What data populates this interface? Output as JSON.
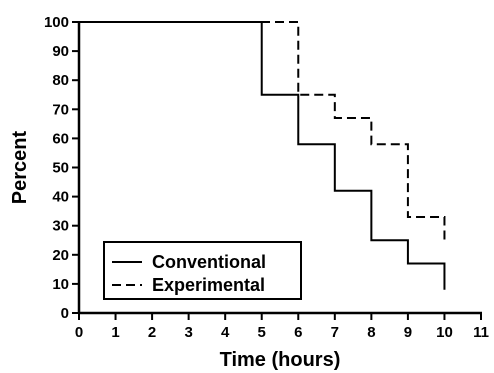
{
  "chart_data": {
    "type": "line",
    "step": true,
    "xlabel": "Time (hours)",
    "ylabel": "Percent",
    "xlim": [
      0,
      11
    ],
    "ylim": [
      0,
      100
    ],
    "xticks": [
      0,
      1,
      2,
      3,
      4,
      5,
      6,
      7,
      8,
      9,
      10,
      11
    ],
    "yticks": [
      0,
      10,
      20,
      30,
      40,
      50,
      60,
      70,
      80,
      90,
      100
    ],
    "grid": false,
    "legend_position": "bottom-left",
    "series": [
      {
        "name": "Conventional",
        "dash": "solid",
        "color": "#000000",
        "x": [
          0,
          5,
          6,
          7,
          8,
          9,
          10
        ],
        "y": [
          100,
          75,
          58,
          42,
          25,
          17,
          8
        ]
      },
      {
        "name": "Experimental",
        "dash": "dashed",
        "color": "#000000",
        "x": [
          0,
          6,
          7,
          8,
          9,
          10
        ],
        "y": [
          100,
          75,
          67,
          58,
          33,
          25
        ]
      }
    ]
  }
}
